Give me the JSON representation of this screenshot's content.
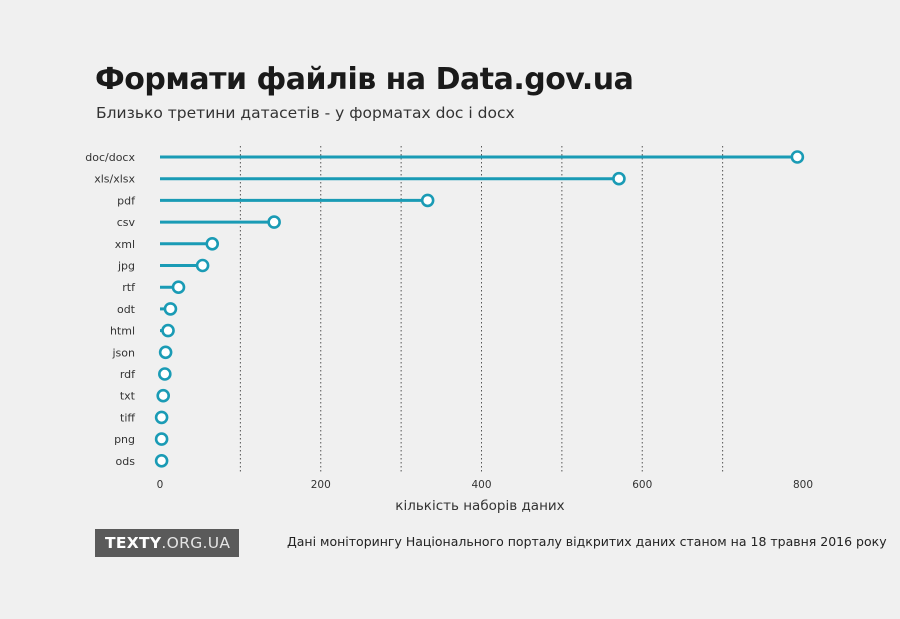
{
  "header": {
    "title": "Формати файлів на Data.gov.ua",
    "subtitle": "Близько третини датасетів - у форматах doc і docx"
  },
  "footer": {
    "logo_bold": "TEXTY",
    "logo_light": ".ORG.UA",
    "source": "Дані моніторингу Національного порталу відкритих даних станом на 18 травня 2016 року"
  },
  "colors": {
    "accent": "#1a9bb5",
    "grid": "#555555",
    "background": "#f0f0f0"
  },
  "chart_data": {
    "type": "lollipop",
    "orientation": "horizontal",
    "title": "Формати файлів на Data.gov.ua",
    "subtitle": "Близько третини датасетів - у форматах doc і docx",
    "xlabel": "кількість наборів даних",
    "ylabel": "",
    "xlim": [
      0,
      800
    ],
    "xticks": [
      0,
      200,
      400,
      600,
      800
    ],
    "gridlines": [
      100,
      200,
      300,
      400,
      500,
      600,
      700
    ],
    "grid": "vertical dotted",
    "legend": "none",
    "categories": [
      "doc/docx",
      "xls/xlsx",
      "pdf",
      "csv",
      "xml",
      "jpg",
      "rtf",
      "odt",
      "html",
      "json",
      "rdf",
      "txt",
      "tiff",
      "png",
      "ods"
    ],
    "values": [
      793,
      571,
      333,
      142,
      65,
      53,
      23,
      13,
      10,
      7,
      6,
      4,
      2,
      2,
      2
    ]
  }
}
